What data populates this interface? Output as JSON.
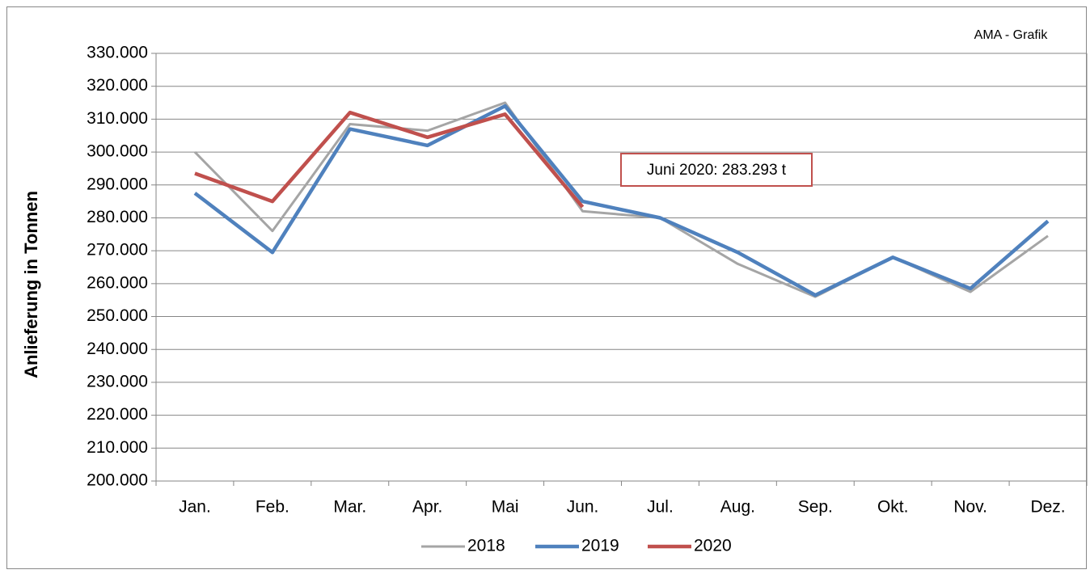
{
  "chart_data": {
    "type": "line",
    "y_label": "Anlieferung in Tonnen",
    "source": "AMA - Grafik",
    "annotation": "Juni 2020: 283.293 t",
    "categories": [
      "Jan.",
      "Feb.",
      "Mar.",
      "Apr.",
      "Mai",
      "Jun.",
      "Jul.",
      "Aug.",
      "Sep.",
      "Okt.",
      "Nov.",
      "Dez."
    ],
    "series": [
      {
        "name": "2018",
        "color": "#a5a5a5",
        "values": [
          300000,
          276000,
          308500,
          306500,
          315000,
          282000,
          280000,
          266000,
          256000,
          268000,
          257500,
          274500
        ]
      },
      {
        "name": "2019",
        "color": "#4f81bd",
        "values": [
          287500,
          269500,
          307000,
          302000,
          314000,
          285000,
          280000,
          269500,
          256500,
          268000,
          258500,
          279000
        ]
      },
      {
        "name": "2020",
        "color": "#c0504d",
        "values": [
          293500,
          285000,
          312000,
          304500,
          311500,
          283293,
          null,
          null,
          null,
          null,
          null,
          null
        ]
      }
    ],
    "ylim": [
      200000,
      330000
    ],
    "yticks": [
      {
        "value": 200000,
        "label": "200.000"
      },
      {
        "value": 210000,
        "label": "210.000"
      },
      {
        "value": 220000,
        "label": "220.000"
      },
      {
        "value": 230000,
        "label": "230.000"
      },
      {
        "value": 240000,
        "label": "240.000"
      },
      {
        "value": 250000,
        "label": "250.000"
      },
      {
        "value": 260000,
        "label": "260.000"
      },
      {
        "value": 270000,
        "label": "270.000"
      },
      {
        "value": 280000,
        "label": "280.000"
      },
      {
        "value": 290000,
        "label": "290.000"
      },
      {
        "value": 300000,
        "label": "300.000"
      },
      {
        "value": 310000,
        "label": "310.000"
      },
      {
        "value": 320000,
        "label": "320.000"
      },
      {
        "value": 330000,
        "label": "330.000"
      }
    ],
    "grid": true,
    "legend": "bottom"
  }
}
